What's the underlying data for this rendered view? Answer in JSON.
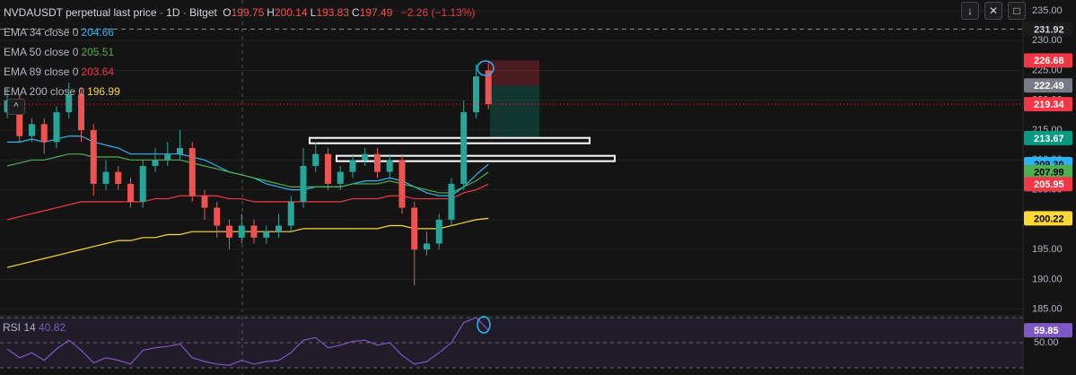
{
  "chart_data": {
    "type": "candlestick",
    "title": "NVDAUSDT perpetual last price · 1D · Bitget",
    "ohlc_labels": [
      "O",
      "H",
      "L",
      "C"
    ],
    "ohlc_values": [
      199.75,
      200.14,
      193.83,
      197.49
    ],
    "change": "−2.26 (−1.13%)",
    "up_color": "#26a69a",
    "down_color": "#ef5350",
    "open": [
      218,
      220,
      214,
      216,
      213,
      218,
      221,
      215,
      206,
      208,
      206,
      203,
      209,
      210,
      211,
      212,
      204,
      202,
      199,
      197,
      199,
      197,
      198,
      199,
      203,
      209,
      211,
      206,
      208,
      210,
      211,
      208,
      210,
      202,
      195,
      196,
      200,
      206,
      218,
      225
    ],
    "high": [
      222,
      221,
      217,
      217,
      219,
      223,
      222,
      216,
      210,
      209,
      207,
      210,
      212,
      213,
      215,
      213,
      205,
      203,
      200,
      201,
      200,
      199,
      201,
      204,
      212,
      213,
      212,
      209,
      211,
      212,
      212,
      211,
      211,
      203,
      198,
      201,
      207,
      220,
      226,
      226.5
    ],
    "low": [
      217,
      213,
      213,
      211,
      212,
      217,
      213,
      204,
      205,
      205,
      202,
      202,
      208,
      209,
      210,
      203,
      200,
      197,
      195,
      196,
      196,
      196,
      197,
      198,
      202,
      208,
      205,
      205,
      207,
      209,
      207,
      207,
      201,
      189,
      194,
      195,
      199,
      205,
      217,
      218.5
    ],
    "close": [
      220,
      214,
      216,
      213,
      218,
      221,
      215,
      206,
      208,
      206,
      203,
      209,
      210,
      211,
      212,
      204,
      202,
      199,
      197,
      199,
      197,
      198,
      199,
      203,
      209,
      211,
      206,
      208,
      210,
      211,
      208,
      210,
      202,
      195,
      196,
      200,
      206,
      218,
      224,
      219.34
    ],
    "ylim": [
      183.9,
      236.8
    ],
    "yticks": [
      {
        "value": 185,
        "label": "185.00"
      },
      {
        "value": 190,
        "label": "190.00"
      },
      {
        "value": 195,
        "label": "195.00"
      },
      {
        "value": 200,
        "label": "200.00"
      },
      {
        "value": 205,
        "label": "205.00"
      },
      {
        "value": 210,
        "label": "210.00"
      },
      {
        "value": 215,
        "label": "215.00"
      },
      {
        "value": 220,
        "label": "220.00"
      },
      {
        "value": 225,
        "label": "225.00"
      },
      {
        "value": 230,
        "label": "230.00"
      },
      {
        "value": 235,
        "label": "235.00"
      }
    ],
    "grid": true,
    "series": [
      {
        "name": "EMA 34 close 0",
        "legend_value": 204.66,
        "color": "#29b6f6",
        "values": [
          213,
          213,
          213.5,
          213,
          213.5,
          214,
          214,
          213,
          212.5,
          212,
          211,
          211,
          211,
          211,
          211,
          210.5,
          210,
          209,
          208,
          207.5,
          207,
          206,
          205.5,
          205,
          205,
          205.5,
          205.5,
          205.5,
          206,
          206.5,
          206.5,
          207,
          206.5,
          205.5,
          204.5,
          204,
          204,
          205.5,
          207.5,
          209.3
        ]
      },
      {
        "name": "EMA 50 close 0",
        "legend_value": 205.51,
        "color": "#4caf50",
        "values": [
          209,
          209.5,
          210,
          210,
          210.5,
          211,
          211,
          210.5,
          210.5,
          210.5,
          210,
          210,
          210,
          210,
          210,
          209.5,
          209,
          208.5,
          208,
          207.5,
          207,
          206.5,
          206,
          205.5,
          205.5,
          205.5,
          205.5,
          205.5,
          206,
          206,
          206,
          206.5,
          206,
          205.5,
          205,
          204.5,
          204.5,
          205.5,
          206.5,
          207.99
        ]
      },
      {
        "name": "EMA 89 close 0",
        "legend_value": 203.64,
        "color": "#f23645",
        "values": [
          200,
          200.5,
          201,
          201.5,
          202,
          202.5,
          203,
          203,
          203,
          203,
          203,
          203,
          203.5,
          203.5,
          204,
          204,
          204,
          204,
          203.5,
          203.5,
          203,
          203,
          203,
          203,
          203,
          203,
          203,
          203,
          203.5,
          203.5,
          203.5,
          204,
          204,
          203.5,
          203.5,
          203.5,
          203.5,
          204.5,
          205,
          205.95
        ]
      },
      {
        "name": "EMA 200 close 0",
        "legend_value": 196.99,
        "color": "#fdd835",
        "values": [
          192,
          192.5,
          193,
          193.5,
          194,
          194.5,
          195,
          195.5,
          196,
          196.5,
          196.5,
          197,
          197,
          197.5,
          197.5,
          198,
          198,
          198,
          198,
          198,
          198,
          198,
          198,
          198,
          198.5,
          198.5,
          198.5,
          198.5,
          198.5,
          198.5,
          198.5,
          199,
          199,
          198.5,
          198.5,
          198.5,
          199,
          199.5,
          200,
          200.22
        ]
      }
    ],
    "price_labels": [
      {
        "value": 231.92,
        "color": "#1c1c1c",
        "text_color": "#d1d4dc",
        "line": "dashed"
      },
      {
        "value": 226.68,
        "color": "#f23645",
        "text_color": "#ffffff"
      },
      {
        "value": 222.49,
        "color": "#787b86",
        "text_color": "#ffffff"
      },
      {
        "value": 219.34,
        "color": "#f23645",
        "text_color": "#ffffff",
        "line": "dotted"
      },
      {
        "value": 213.67,
        "color": "#089981",
        "text_color": "#ffffff"
      },
      {
        "value": 209.3,
        "label": "209.30",
        "color": "#29b6f6",
        "text_color": "#000000"
      },
      {
        "value": 207.99,
        "color": "#4caf50",
        "text_color": "#000000"
      },
      {
        "value": 205.95,
        "color": "#f23645",
        "text_color": "#ffffff"
      },
      {
        "value": 200.22,
        "color": "#fdd835",
        "text_color": "#000000"
      }
    ],
    "zones": [
      {
        "top": 226.68,
        "bottom": 222.49,
        "color": "rgba(242,54,69,0.25)"
      },
      {
        "top": 222.49,
        "bottom": 213.67,
        "color": "rgba(8,153,129,0.25)"
      },
      {
        "top": 213.7,
        "bottom": 212.8,
        "color": "#ffffff"
      },
      {
        "top": 210.7,
        "bottom": 209.8,
        "color": "#ffffff"
      }
    ],
    "rsi": {
      "name": "RSI 14",
      "legend_value": 40.82,
      "color": "#7e57c2",
      "values": [
        45,
        38,
        42,
        36,
        45,
        52,
        44,
        34,
        38,
        36,
        33,
        44,
        46,
        47,
        49,
        38,
        35,
        33,
        32,
        36,
        33,
        35,
        36,
        42,
        52,
        54,
        46,
        48,
        51,
        52,
        48,
        50,
        40,
        33,
        35,
        42,
        50,
        66,
        70,
        59.85
      ],
      "ylim": [
        24.3,
        71.4
      ],
      "yticks": [
        {
          "value": 50,
          "label": "50.00"
        }
      ],
      "levels": [
        70,
        50,
        30
      ],
      "last_label": {
        "value": 59.85,
        "color": "#7e57c2"
      }
    }
  }
}
